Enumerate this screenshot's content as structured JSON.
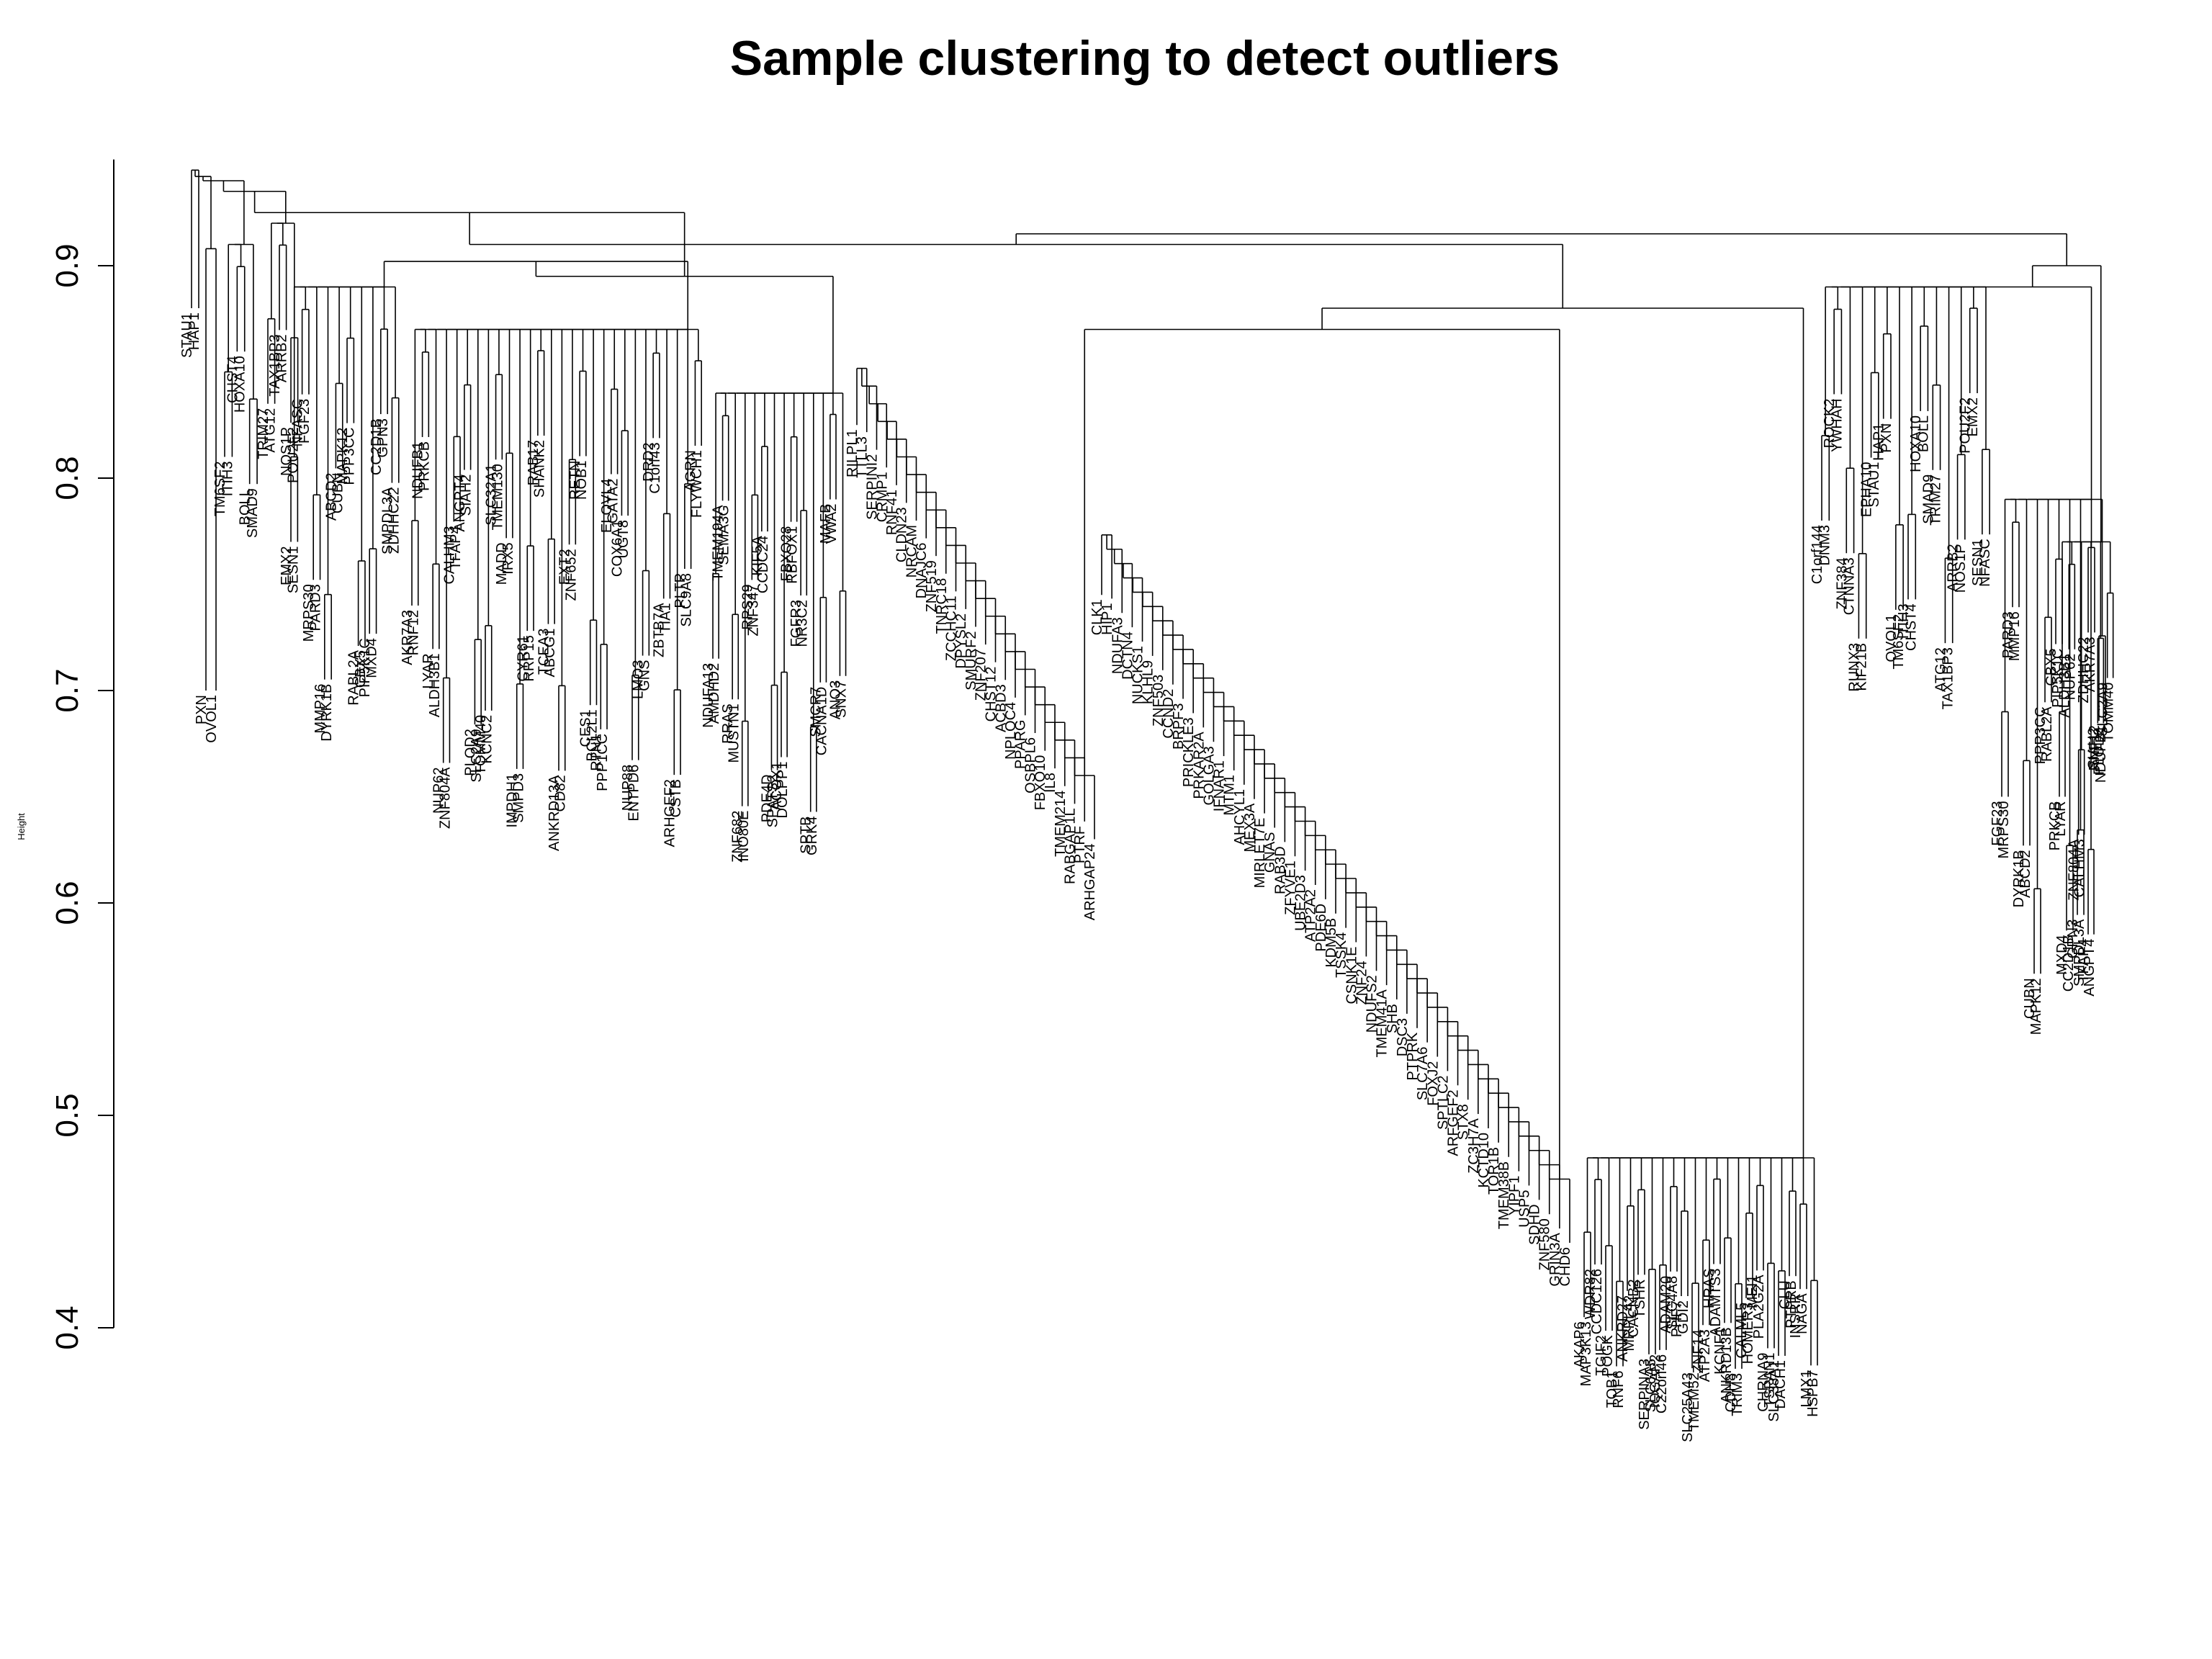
{
  "chart_data": {
    "type": "dendrogram",
    "title": "Sample clustering to detect outliers",
    "xlabel": "",
    "ylabel": "Height",
    "ylim": [
      0.4,
      0.95
    ],
    "yticks": [
      "0.4",
      "0.5",
      "0.6",
      "0.7",
      "0.8",
      "0.9"
    ],
    "grid": false,
    "legend": "none",
    "line_color": "#000000",
    "leaves": [
      "STAU1",
      "HAP1",
      "PXN",
      "OVOL1",
      "TM6SF2",
      "ITIH3",
      "CHST4",
      "HOXA10",
      "BOLL",
      "SMAD9",
      "TRIM27",
      "ATG12",
      "TAX1BP3",
      "ARRB2",
      "NOS1P",
      "POU2F2",
      "EMX2",
      "SESN1",
      "NFASC",
      "FGF23",
      "MRPS30",
      "PARD3",
      "MMP16",
      "DYRK1B",
      "ABCD2",
      "CUBN",
      "MAPK12",
      "PPP3CC",
      "RABL2A",
      "CBX5",
      "PIP5K1C",
      "MXD4",
      "CC2D1B",
      "GPN3",
      "SMPDL3A",
      "ZDHHC22",
      "AKR7A3",
      "RNF12",
      "NDUFB1",
      "PRKCB",
      "LYAR",
      "ALDH3B1",
      "NUP62",
      "ZNF804A",
      "CALHM3",
      "TFAP4",
      "ANGPT4",
      "SIAH2",
      "PLOD2",
      "SLC2A9",
      "TOMM40",
      "KCNC2",
      "SLC32A1",
      "TMEM130",
      "MADD",
      "IRX5",
      "IMPDH1",
      "SMPD3",
      "CYR61",
      "RRP15",
      "RAB17",
      "SHANK2",
      "TCEA3",
      "ABCG1",
      "ANKRD13A",
      "CD82",
      "EXT2",
      "ZNF652",
      "RETN",
      "NOB1",
      "CES1",
      "BCL2L1",
      "RTN1",
      "PPP1CC",
      "ELOVL4",
      "GATA2",
      "COX6A1",
      "UGT8",
      "NUP88",
      "ENTPD6",
      "LMO3",
      "GNS",
      "DRD2",
      "C1orf43",
      "ZBTB7A",
      "TIA1",
      "ARHGEF2",
      "CSTB",
      "PLTP",
      "SLC9A8",
      "AGRN",
      "FLYWCH1",
      "NDUFA13",
      "AMDHD2",
      "TMEM194A",
      "SEMA3G",
      "RRAS",
      "MUSTN1",
      "ZNF682",
      "INO80E",
      "RPS29",
      "ZNF347",
      "KIF5A",
      "CCDC24",
      "PDE4D",
      "SPATS2",
      "ACOX1",
      "DOLPP1",
      "FBXO28",
      "RBFOX1",
      "FGFR3",
      "NR3C2",
      "SPTB",
      "GRK4",
      "SMCR7",
      "CACNA1D",
      "MAFB",
      "VWA2",
      "ANO3",
      "SNX7",
      "RILPL1",
      "TTLL3",
      "SERPINI2",
      "CRMP1",
      "RNF41",
      "CLDN23",
      "NRCAM",
      "DNAJC6",
      "ZNF519",
      "TNRC18",
      "ZCCHC11",
      "DPYSL2",
      "SMURF2",
      "ZNF207",
      "CHST12",
      "ACBD3",
      "NPLOC4",
      "PPARG",
      "OSBPL6",
      "FBXO10",
      "IL8",
      "TMEM214",
      "RABGAP1L",
      "PTRF",
      "ARHGAP24",
      "CLK1",
      "HIP1",
      "NDUFA3",
      "DCTN4",
      "NUCKS1",
      "KLHL9",
      "ZNF503",
      "CCND2",
      "BRPF3",
      "PRICKLE3",
      "PRKAR2A",
      "GOLGA3",
      "IFNAR1",
      "MTM1",
      "AHCYL1",
      "MEX3A",
      "MIRLET7E",
      "GNAS",
      "RAB3D",
      "ZFYVE1",
      "UBE2D3",
      "ATP2A2",
      "PDE6D",
      "KDM5B",
      "TSSK4",
      "CSNK1E",
      "ZNF24",
      "NDUFS2",
      "TMEM41A",
      "SHB",
      "DSC3",
      "PTPRK",
      "SLC7A6",
      "FOXJ2",
      "SPTLC2",
      "ARFGEF2",
      "STX8",
      "ZC3H7A",
      "KCTD10",
      "TOR1B",
      "TMEM38B",
      "YIPF1",
      "USP5",
      "SDHD",
      "ZNF580",
      "GRIN3A",
      "CHD6",
      "AKAP6",
      "MAP3K13",
      "WDR82",
      "CCDC126",
      "TGIF2",
      "POGK",
      "TOB1",
      "RNF6",
      "ANKRD27",
      "MRPL42",
      "CACNB2",
      "TSHR",
      "SERPINA3",
      "SLC6A5",
      "IQGAP2",
      "C22orf46",
      "ADAM20",
      "SLC4A8",
      "PHF7",
      "GDI2",
      "SLC25A43",
      "TMEM52",
      "ZNF14",
      "ATP2A3",
      "HRAS",
      "ADAMTS3",
      "KCNF1",
      "ANKRD13B",
      "CDH8",
      "TRIM3",
      "CALML5",
      "HOMER3",
      "MEI1",
      "PLA2G2A",
      "CHRNA9",
      "TSPAN1",
      "SLC38A1",
      "DACH1",
      "CLU",
      "PTPRB",
      "INSRR",
      "NAGA",
      "LMX1",
      "HSPB7",
      "C1orf144",
      "DNM3",
      "ROCK2",
      "YWHAH",
      "ZNF384",
      "CTNNA3",
      "RUNX3",
      "KIF21B",
      "EPHA10"
    ]
  }
}
